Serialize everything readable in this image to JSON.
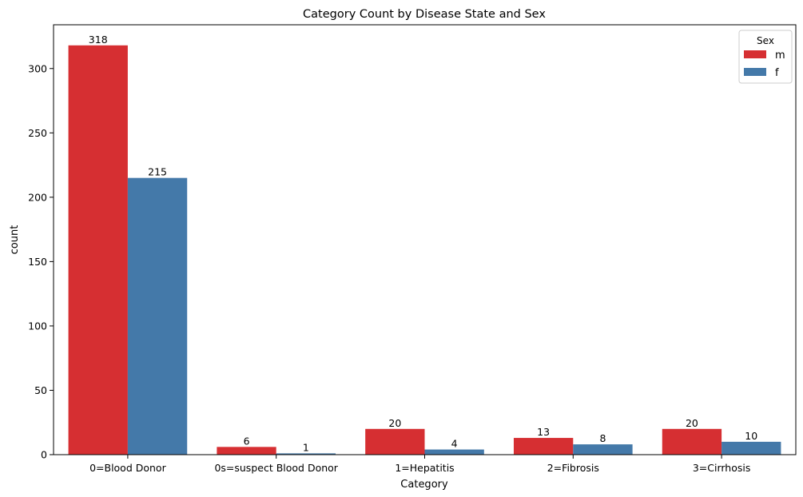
{
  "chart_data": {
    "type": "bar",
    "title": "Category Count by Disease State and Sex",
    "xlabel": "Category",
    "ylabel": "count",
    "categories": [
      "0=Blood Donor",
      "0s=suspect Blood Donor",
      "1=Hepatitis",
      "2=Fibrosis",
      "3=Cirrhosis"
    ],
    "series": [
      {
        "name": "m",
        "color": "#d62f32",
        "values": [
          318,
          6,
          20,
          13,
          20
        ]
      },
      {
        "name": "f",
        "color": "#4479a9",
        "values": [
          215,
          1,
          4,
          8,
          10
        ]
      }
    ],
    "ylim": [
      0,
      334
    ],
    "yticks": [
      0,
      50,
      100,
      150,
      200,
      250,
      300
    ],
    "legend": {
      "title": "Sex",
      "placement": "top-right"
    },
    "grid": false,
    "data_labels": true
  }
}
